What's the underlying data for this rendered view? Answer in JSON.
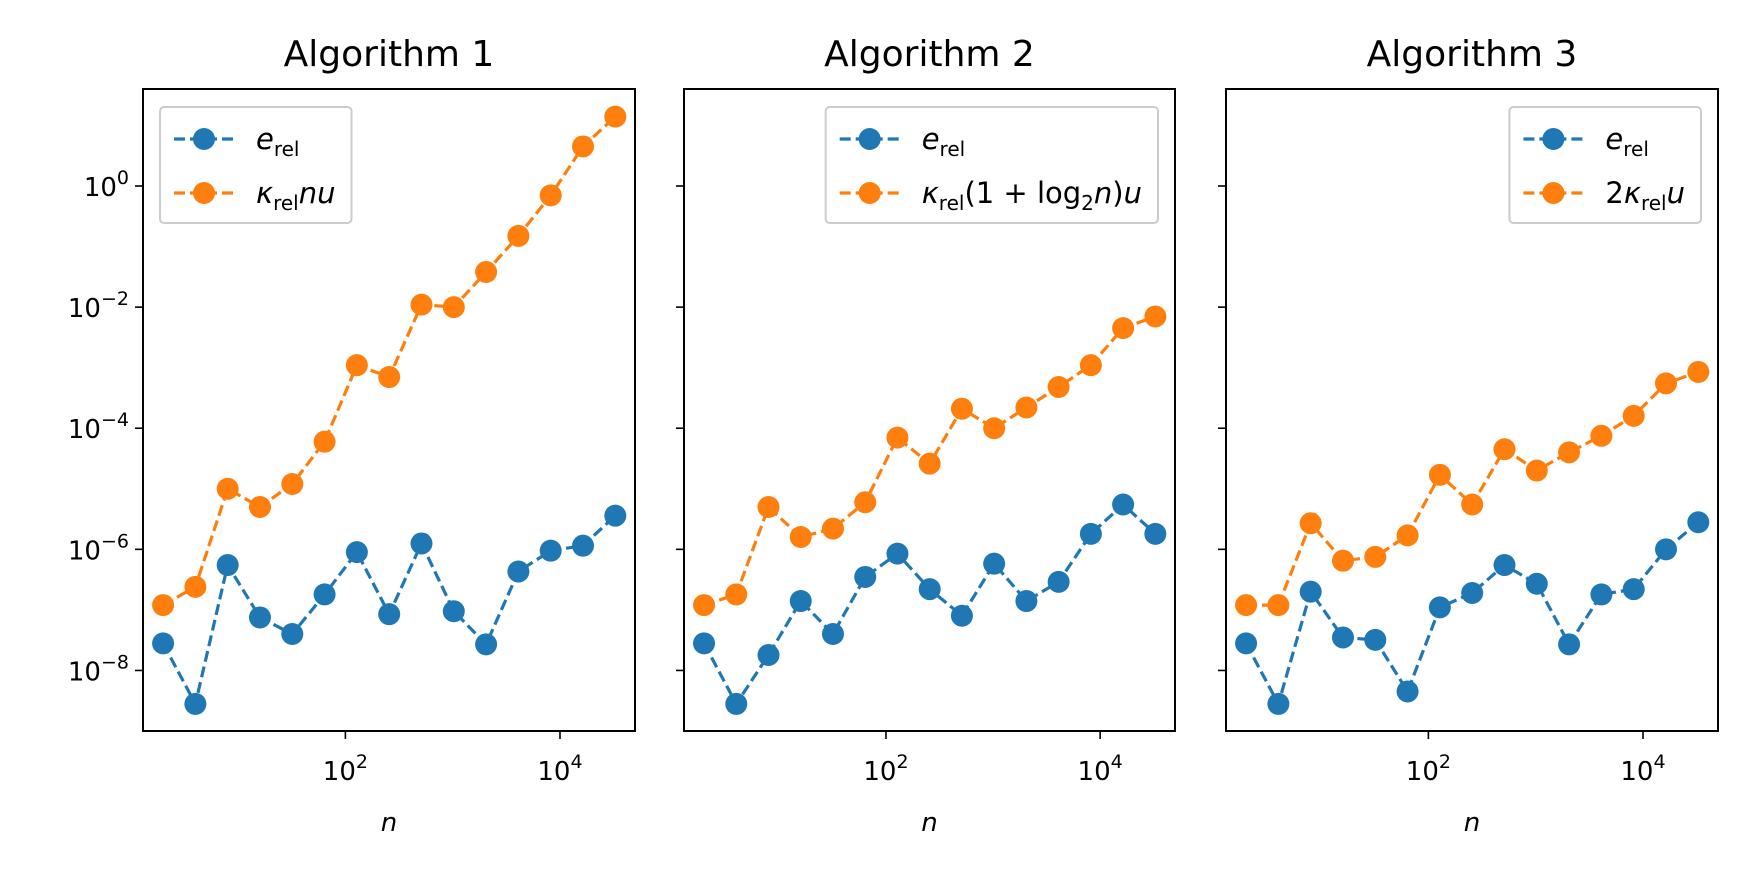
{
  "chart_data": [
    {
      "type": "line",
      "title": "Algorithm 1",
      "xlabel": "n",
      "ylabel": "",
      "x_scale": "log",
      "y_scale": "log",
      "xlim": [
        1.3,
        50000
      ],
      "ylim": [
        1e-09,
        40.0
      ],
      "x_ticks": [
        {
          "value": 100,
          "label": "10^2"
        },
        {
          "value": 10000,
          "label": "10^4"
        }
      ],
      "y_ticks": [
        {
          "value": 1,
          "label": "10^0"
        },
        {
          "value": 0.01,
          "label": "10^-2"
        },
        {
          "value": 0.0001,
          "label": "10^-4"
        },
        {
          "value": 1e-06,
          "label": "10^-6"
        },
        {
          "value": 1e-08,
          "label": "10^-8"
        }
      ],
      "show_y_tick_labels": true,
      "legend_position": "upper left",
      "x": [
        2,
        4,
        8,
        16,
        32,
        64,
        128,
        256,
        512,
        1024,
        2048,
        4096,
        8192,
        16384,
        32768
      ],
      "series": [
        {
          "legend": [
            {
              "t": "e",
              "i": true
            },
            {
              "t": "rel",
              "sub": true
            }
          ],
          "color": "#1f77b4",
          "values": [
            2.8e-08,
            2.8e-09,
            5.5e-07,
            7.5e-08,
            4e-08,
            1.8e-07,
            9e-07,
            8.5e-08,
            1.25e-06,
            9.5e-08,
            2.7e-08,
            4.3e-07,
            9.5e-07,
            1.15e-06,
            3.6e-06
          ]
        },
        {
          "legend": [
            {
              "t": "κ",
              "i": true
            },
            {
              "t": "rel",
              "sub": true
            },
            {
              "t": "nu",
              "i": true
            }
          ],
          "color": "#ff7f0e",
          "values": [
            1.2e-07,
            2.4e-07,
            1e-05,
            5e-06,
            1.2e-05,
            6e-05,
            0.0011,
            0.0007,
            0.011,
            0.01,
            0.038,
            0.15,
            0.7,
            4.5,
            14.0
          ]
        }
      ]
    },
    {
      "type": "line",
      "title": "Algorithm 2",
      "xlabel": "n",
      "ylabel": "",
      "x_scale": "log",
      "y_scale": "log",
      "xlim": [
        1.3,
        50000
      ],
      "ylim": [
        1e-09,
        40.0
      ],
      "x_ticks": [
        {
          "value": 100,
          "label": "10^2"
        },
        {
          "value": 10000,
          "label": "10^4"
        }
      ],
      "y_ticks": [
        {
          "value": 1,
          "label": "10^0"
        },
        {
          "value": 0.01,
          "label": "10^-2"
        },
        {
          "value": 0.0001,
          "label": "10^-4"
        },
        {
          "value": 1e-06,
          "label": "10^-6"
        },
        {
          "value": 1e-08,
          "label": "10^-8"
        }
      ],
      "show_y_tick_labels": false,
      "legend_position": "upper right",
      "x": [
        2,
        4,
        8,
        16,
        32,
        64,
        128,
        256,
        512,
        1024,
        2048,
        4096,
        8192,
        16384,
        32768
      ],
      "series": [
        {
          "legend": [
            {
              "t": "e",
              "i": true
            },
            {
              "t": "rel",
              "sub": true
            }
          ],
          "color": "#1f77b4",
          "values": [
            2.8e-08,
            2.8e-09,
            1.8e-08,
            1.4e-07,
            4e-08,
            3.5e-07,
            8.5e-07,
            2.2e-07,
            8e-08,
            5.8e-07,
            1.4e-07,
            2.9e-07,
            1.8e-06,
            5.5e-06,
            1.8e-06
          ]
        },
        {
          "legend": [
            {
              "t": "κ",
              "i": true
            },
            {
              "t": "rel",
              "sub": true
            },
            {
              "t": "(1 + log"
            },
            {
              "t": "2",
              "sub": true
            },
            {
              "t": "n",
              "i": true
            },
            {
              "t": ")"
            },
            {
              "t": "u",
              "i": true
            }
          ],
          "color": "#ff7f0e",
          "values": [
            1.2e-07,
            1.8e-07,
            5e-06,
            1.6e-06,
            2.2e-06,
            6e-06,
            7e-05,
            2.6e-05,
            0.00021,
            0.0001,
            0.00022,
            0.00048,
            0.0011,
            0.0045,
            0.007
          ]
        }
      ]
    },
    {
      "type": "line",
      "title": "Algorithm 3",
      "xlabel": "n",
      "ylabel": "",
      "x_scale": "log",
      "y_scale": "log",
      "xlim": [
        1.3,
        50000
      ],
      "ylim": [
        1e-09,
        40.0
      ],
      "x_ticks": [
        {
          "value": 100,
          "label": "10^2"
        },
        {
          "value": 10000,
          "label": "10^4"
        }
      ],
      "y_ticks": [
        {
          "value": 1,
          "label": "10^0"
        },
        {
          "value": 0.01,
          "label": "10^-2"
        },
        {
          "value": 0.0001,
          "label": "10^-4"
        },
        {
          "value": 1e-06,
          "label": "10^-6"
        },
        {
          "value": 1e-08,
          "label": "10^-8"
        }
      ],
      "show_y_tick_labels": false,
      "legend_position": "upper right",
      "x": [
        2,
        4,
        8,
        16,
        32,
        64,
        128,
        256,
        512,
        1024,
        2048,
        4096,
        8192,
        16384,
        32768
      ],
      "series": [
        {
          "legend": [
            {
              "t": "e",
              "i": true
            },
            {
              "t": "rel",
              "sub": true
            }
          ],
          "color": "#1f77b4",
          "values": [
            2.8e-08,
            2.8e-09,
            2e-07,
            3.5e-08,
            3.2e-08,
            4.5e-09,
            1.1e-07,
            1.9e-07,
            5.5e-07,
            2.7e-07,
            2.7e-08,
            1.8e-07,
            2.2e-07,
            1e-06,
            2.8e-06
          ]
        },
        {
          "legend": [
            {
              "t": "2"
            },
            {
              "t": "κ",
              "i": true
            },
            {
              "t": "rel",
              "sub": true
            },
            {
              "t": "u",
              "i": true
            }
          ],
          "color": "#ff7f0e",
          "values": [
            1.2e-07,
            1.2e-07,
            2.7e-06,
            6.5e-07,
            7.5e-07,
            1.7e-06,
            1.7e-05,
            5.5e-06,
            4.5e-05,
            2e-05,
            4e-05,
            7.5e-05,
            0.00016,
            0.00055,
            0.00085
          ]
        }
      ]
    }
  ]
}
